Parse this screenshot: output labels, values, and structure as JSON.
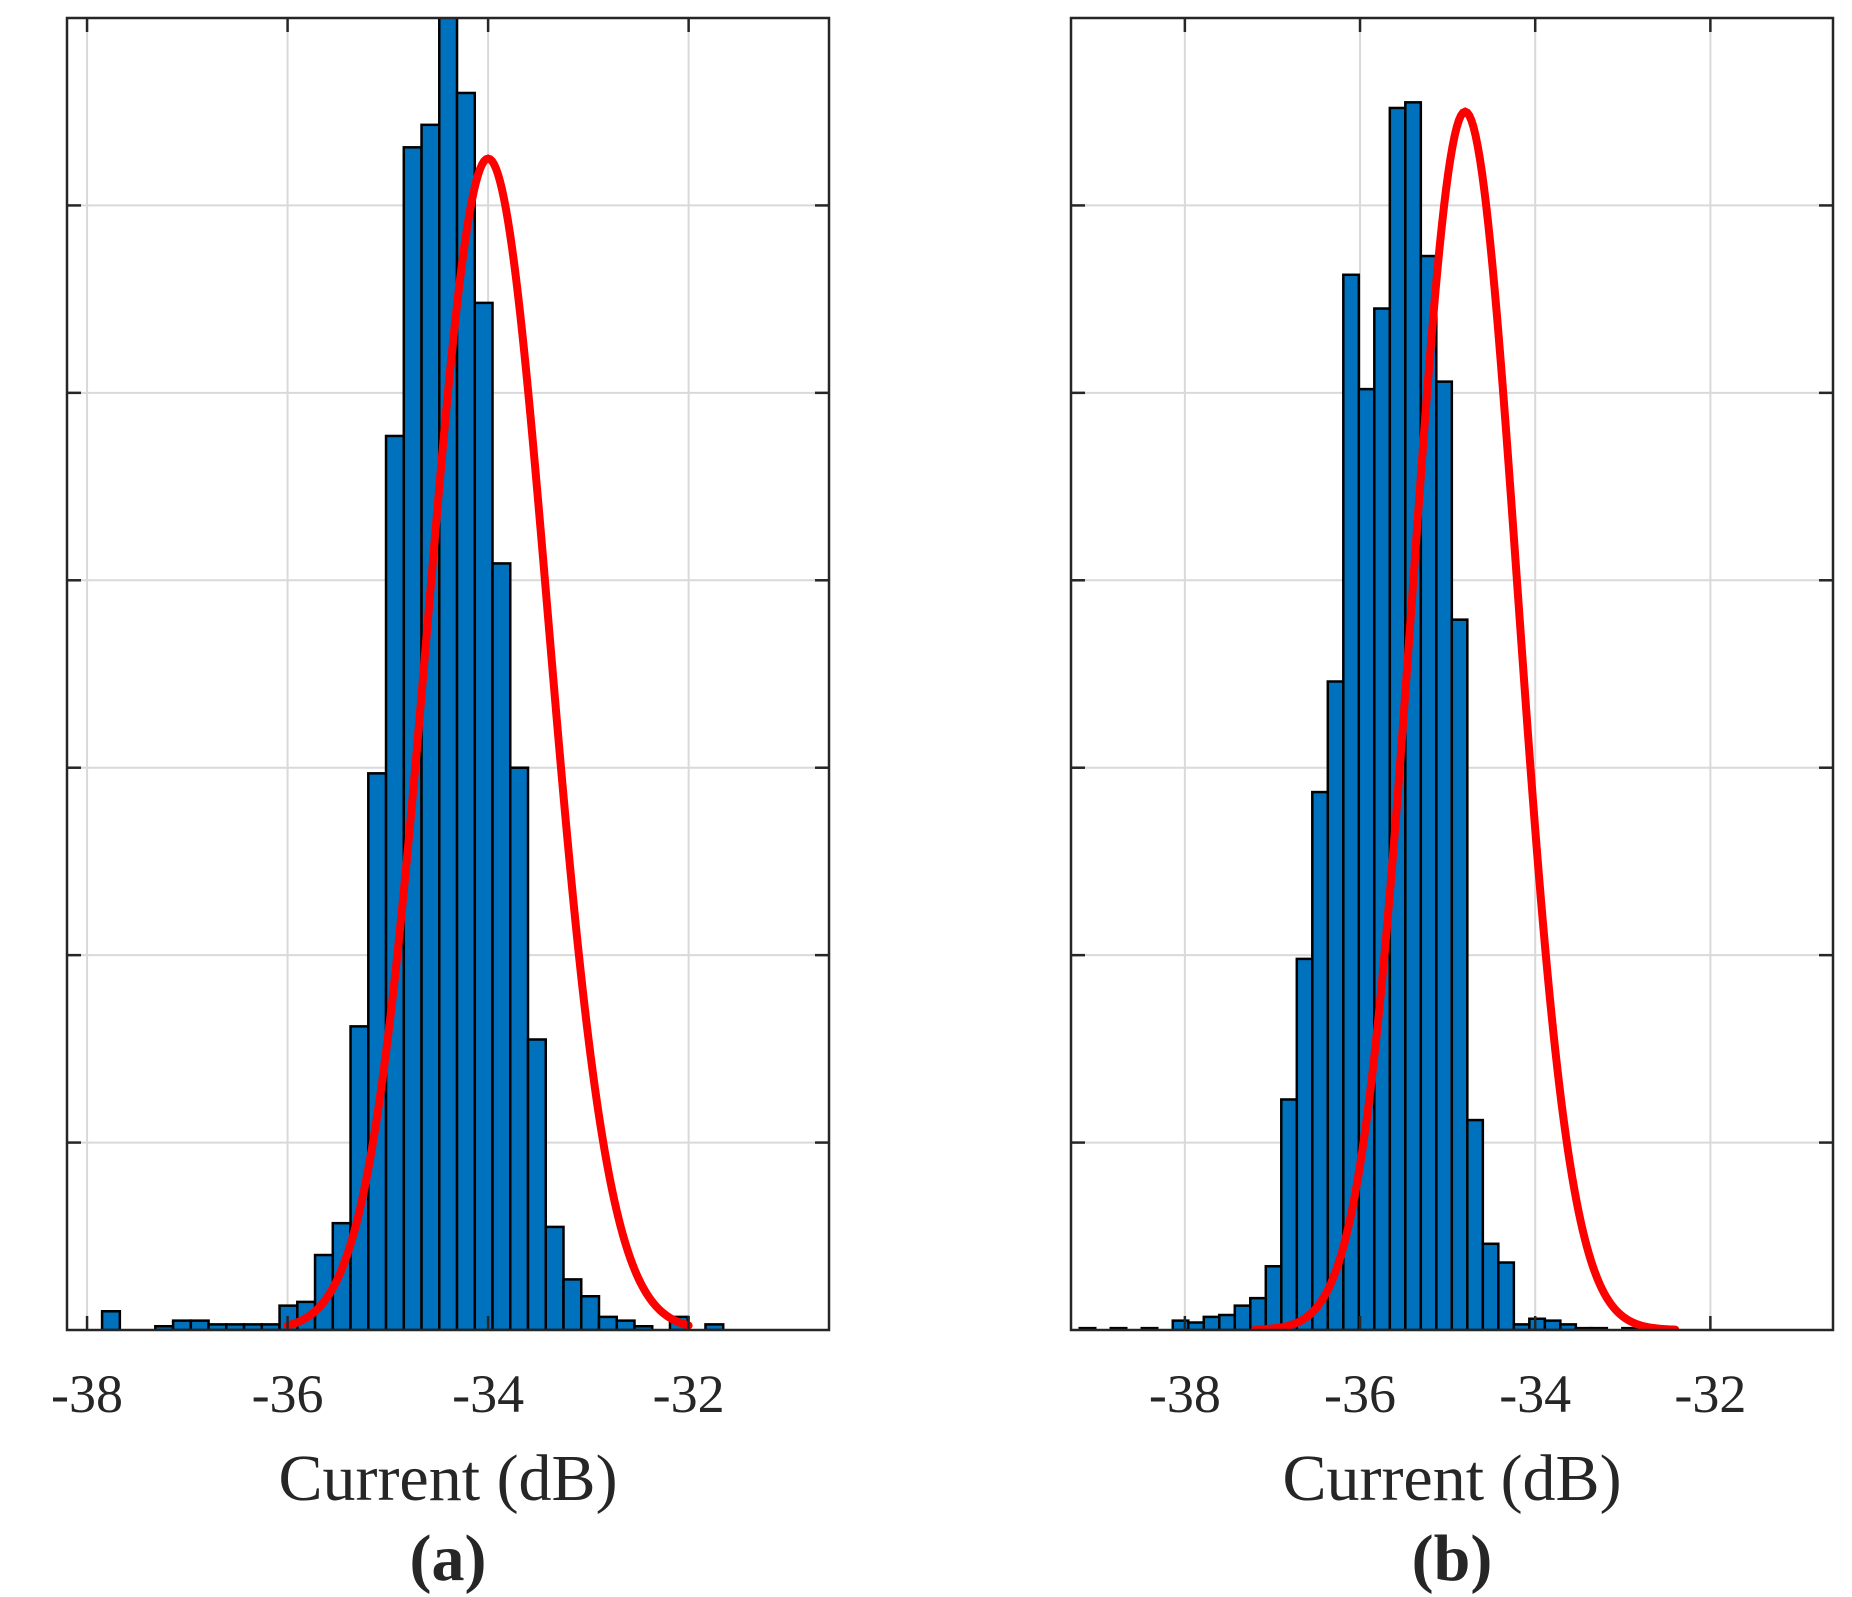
{
  "colors": {
    "bar_fill": "#0072BD",
    "bar_edge": "#000000",
    "fit_line": "#FF0000",
    "grid": "#D9D9D9",
    "axes": "#262626"
  },
  "chart_data": [
    {
      "type": "bar",
      "panel_label": "(a)",
      "xlabel": "Current (dB)",
      "ylabel": "",
      "xlim": [
        -38.2,
        -30.6
      ],
      "ylim": [
        0,
        70
      ],
      "xticks": [
        -38,
        -36,
        -34,
        -32
      ],
      "xtick_labels": [
        "-38",
        "-36",
        "-34",
        "-32"
      ],
      "yticks": [
        10,
        20,
        30,
        40,
        50,
        60
      ],
      "grid": true,
      "bin_start": -37.85,
      "bin_width": 0.177,
      "counts": [
        1,
        0,
        0,
        0.2,
        0.5,
        0.5,
        0.3,
        0.3,
        0.3,
        0.3,
        1.3,
        1.5,
        4,
        5.7,
        16.2,
        29.7,
        47.7,
        63.1,
        64.3,
        75,
        66,
        54.8,
        40.9,
        30,
        15.5,
        5.5,
        2.7,
        1.8,
        0.7,
        0.5,
        0.2,
        0,
        0.7,
        0,
        0.3
      ],
      "fit": {
        "type": "gaussian",
        "mean": -34.0,
        "sigma": 0.6,
        "peak": 62.5,
        "range": [
          -36.0,
          -32.0
        ]
      }
    },
    {
      "type": "bar",
      "panel_label": "(b)",
      "xlabel": "Current (dB)",
      "ylabel": "",
      "xlim": [
        -39.3,
        -30.6
      ],
      "ylim": [
        0,
        70
      ],
      "xticks": [
        -38,
        -36,
        -34,
        -32
      ],
      "xtick_labels": [
        "-38",
        "-36",
        "-34",
        "-32"
      ],
      "yticks": [
        10,
        20,
        30,
        40,
        50,
        60
      ],
      "grid": true,
      "bin_start": -39.2,
      "bin_width": 0.177,
      "counts": [
        0.1,
        0,
        0.1,
        0,
        0.1,
        0,
        0.5,
        0.4,
        0.7,
        0.8,
        1.3,
        1.7,
        3.4,
        12.3,
        19.8,
        28.7,
        34.6,
        56.3,
        50.2,
        54.5,
        65.2,
        65.5,
        57.3,
        50.6,
        37.9,
        11.2,
        4.6,
        3.6,
        0.3,
        0.6,
        0.5,
        0.3,
        0.1,
        0.1,
        0,
        0.1
      ],
      "fit": {
        "type": "gaussian",
        "mean": -34.8,
        "sigma": 0.6,
        "peak": 65.0,
        "range": [
          -37.2,
          -32.4
        ]
      }
    }
  ]
}
